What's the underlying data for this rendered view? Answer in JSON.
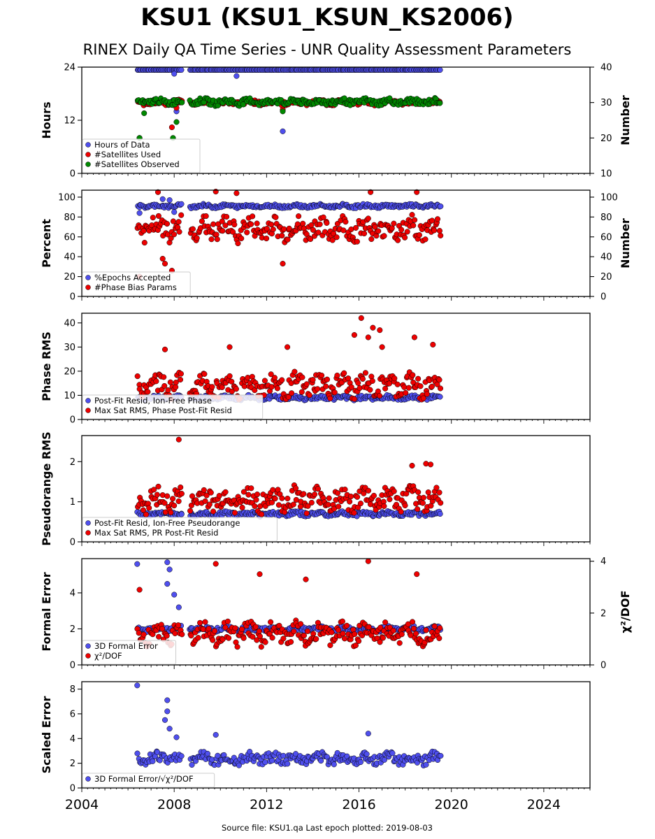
{
  "title": "KSU1 (KSU1_KSUN_KS2006)",
  "subtitle": "RINEX Daily QA Time Series - UNR Quality Assessment Parameters",
  "footer": "Source file: KSU1.qa Last epoch plotted: 2019-08-03",
  "colors": {
    "blue": "#4f4fee",
    "red": "#ee0000",
    "green": "#008800"
  },
  "chart_data": [
    {
      "type": "scatter",
      "ylabel": "Hours",
      "ylabel_right": "Number",
      "ylim": [
        0,
        24
      ],
      "yticks": [
        "0",
        "12",
        "24"
      ],
      "ylim_right": [
        10,
        40
      ],
      "yticks_right": [
        "10",
        "20",
        "30",
        "40"
      ],
      "legend": [
        "Hours of Data",
        "#Satellites Used",
        "#Satellites Observed"
      ],
      "series": [
        {
          "name": "Hours of Data",
          "color": "#4f4fee",
          "axis": "left",
          "level": 24,
          "noise": 0,
          "outliers": [
            [
              2007.95,
              16.5
            ],
            [
              2008.0,
              22.5
            ],
            [
              2010.7,
              22
            ],
            [
              2012.7,
              9.5
            ],
            [
              2008.1,
              14
            ]
          ]
        },
        {
          "name": "#Satellites Used",
          "color": "#ee0000",
          "axis": "right",
          "level": 30,
          "noise": 0.6,
          "outliers": [
            [
              2006.5,
              20
            ],
            [
              2007.9,
              23
            ],
            [
              2008.1,
              28.5
            ],
            [
              2012.7,
              28
            ],
            [
              2009.8,
              30
            ]
          ]
        },
        {
          "name": "#Satellites Observed",
          "color": "#008800",
          "axis": "right",
          "level": 30.2,
          "noise": 0.8,
          "outliers": [
            [
              2006.5,
              20
            ],
            [
              2007.95,
              20
            ],
            [
              2008.1,
              24.5
            ],
            [
              2012.7,
              27.5
            ],
            [
              2006.7,
              27
            ]
          ]
        }
      ]
    },
    {
      "type": "scatter",
      "ylabel": "Percent",
      "ylabel_right": "Number",
      "ylim": [
        0,
        107
      ],
      "yticks": [
        "0",
        "20",
        "40",
        "60",
        "80",
        "100"
      ],
      "ylim_right": [
        0,
        107
      ],
      "yticks_right": [
        "0",
        "20",
        "40",
        "60",
        "80",
        "100"
      ],
      "legend": [
        "%Epochs Accepted",
        "#Phase Bias Params"
      ],
      "series": [
        {
          "name": "%Epochs Accepted",
          "color": "#4f4fee",
          "axis": "left",
          "level": 91,
          "noise": 1.5,
          "outliers": [
            [
              2007.5,
              98
            ],
            [
              2007.8,
              97
            ],
            [
              2008.0,
              85
            ],
            [
              2006.5,
              84
            ]
          ]
        },
        {
          "name": "#Phase Bias Params",
          "color": "#ee0000",
          "axis": "right",
          "level": 68,
          "noise": 10,
          "outliers": [
            [
              2006.5,
              20
            ],
            [
              2007.6,
              33
            ],
            [
              2007.5,
              38
            ],
            [
              2007.9,
              26
            ],
            [
              2012.7,
              33
            ],
            [
              2009.8,
              106
            ],
            [
              2010.7,
              104
            ],
            [
              2016.5,
              105
            ],
            [
              2018.5,
              105
            ],
            [
              2007.3,
              105
            ]
          ]
        }
      ]
    },
    {
      "type": "scatter",
      "ylabel": "Phase RMS",
      "ylim": [
        0,
        44
      ],
      "yticks": [
        "0",
        "10",
        "20",
        "30",
        "40"
      ],
      "legend": [
        "Post-Fit Resid, Ion-Free Phase",
        "Max Sat RMS, Phase Post-Fit Resid"
      ],
      "series": [
        {
          "name": "Post-Fit Resid, Ion-Free Phase",
          "color": "#4f4fee",
          "axis": "left",
          "level": 9,
          "noise": 0.8,
          "outliers": []
        },
        {
          "name": "Max Sat RMS, Phase Post-Fit Resid",
          "color": "#ee0000",
          "axis": "left",
          "level": 14,
          "noise": 4,
          "outliers": [
            [
              2016.1,
              42
            ],
            [
              2016.6,
              38
            ],
            [
              2016.9,
              37
            ],
            [
              2016.4,
              34
            ],
            [
              2015.8,
              35
            ],
            [
              2017.0,
              30
            ],
            [
              2018.4,
              34
            ],
            [
              2019.2,
              31
            ],
            [
              2012.9,
              30
            ],
            [
              2010.4,
              30
            ],
            [
              2007.6,
              29
            ]
          ]
        }
      ]
    },
    {
      "type": "scatter",
      "ylabel": "Pseudorange RMS",
      "ylim": [
        0,
        2.65
      ],
      "yticks": [
        "0",
        "1",
        "2"
      ],
      "legend": [
        "Post-Fit Resid, Ion-Free Pseudorange",
        "Max Sat RMS, PR Post-Fit Resid"
      ],
      "series": [
        {
          "name": "Post-Fit Resid, Ion-Free Pseudorange",
          "color": "#4f4fee",
          "axis": "left",
          "level": 0.7,
          "noise": 0.05,
          "outliers": []
        },
        {
          "name": "Max Sat RMS, PR Post-Fit Resid",
          "color": "#ee0000",
          "axis": "left",
          "level": 1.05,
          "noise": 0.25,
          "outliers": [
            [
              2008.2,
              2.55
            ],
            [
              2018.9,
              1.95
            ],
            [
              2019.1,
              1.93
            ],
            [
              2018.3,
              1.9
            ]
          ]
        }
      ]
    },
    {
      "type": "scatter",
      "ylabel": "Formal Error",
      "ylabel_right": "χ²/DOF",
      "ylim": [
        0,
        5.9
      ],
      "yticks": [
        "0",
        "2",
        "4"
      ],
      "ylim_right": [
        0,
        4.1
      ],
      "yticks_right": [
        "0",
        "2",
        "4"
      ],
      "legend": [
        "3D Formal Error",
        "χ²/DOF"
      ],
      "series": [
        {
          "name": "3D Formal Error",
          "color": "#4f4fee",
          "axis": "left",
          "level": 2.0,
          "noise": 0.12,
          "outliers": [
            [
              2006.4,
              5.6
            ],
            [
              2007.7,
              5.7
            ],
            [
              2007.8,
              5.3
            ],
            [
              2007.7,
              4.5
            ],
            [
              2008.0,
              3.9
            ],
            [
              2008.2,
              3.2
            ]
          ]
        },
        {
          "name": "χ²/DOF",
          "color": "#ee0000",
          "axis": "right",
          "level": 1.2,
          "noise": 0.35,
          "outliers": [
            [
              2016.4,
              4.0
            ],
            [
              2009.8,
              3.9
            ],
            [
              2011.7,
              3.5
            ],
            [
              2018.5,
              3.5
            ],
            [
              2013.7,
              3.3
            ],
            [
              2006.5,
              2.9
            ]
          ]
        }
      ]
    },
    {
      "type": "scatter",
      "ylabel": "Scaled Error",
      "ylim": [
        0,
        8.6
      ],
      "yticks": [
        "0",
        "2",
        "4",
        "6",
        "8"
      ],
      "legend": [
        "3D Formal Error/√χ²/DOF"
      ],
      "series": [
        {
          "name": "3D Formal Error/√χ²/DOF",
          "color": "#4f4fee",
          "axis": "left",
          "level": 2.4,
          "noise": 0.4,
          "outliers": [
            [
              2006.4,
              8.3
            ],
            [
              2007.7,
              7.1
            ],
            [
              2007.7,
              6.2
            ],
            [
              2007.6,
              5.5
            ],
            [
              2008.1,
              4.1
            ],
            [
              2016.4,
              4.4
            ],
            [
              2009.8,
              4.3
            ],
            [
              2007.8,
              4.8
            ]
          ]
        }
      ]
    }
  ],
  "xaxis": {
    "xlim": [
      2004,
      2026
    ],
    "xticks": [
      2004,
      2008,
      2012,
      2016,
      2020,
      2024
    ],
    "xtick_labels": [
      "2004",
      "2008",
      "2012",
      "2016",
      "2020",
      "2024"
    ],
    "data_range": [
      2006.4,
      2019.55
    ],
    "gap": [
      2008.35,
      2008.65
    ]
  }
}
